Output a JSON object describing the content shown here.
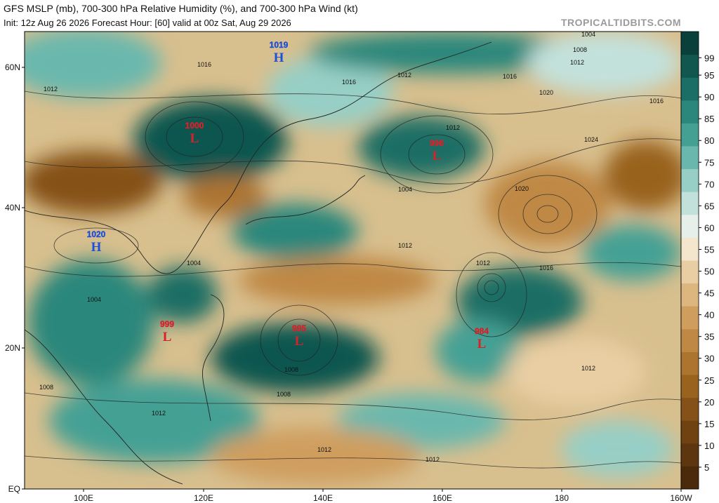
{
  "header": {
    "title": "GFS MSLP (mb), 700-300 hPa Relative Humidity (%), and 700-300 hPa Wind (kt)",
    "subtitle": "Init: 12z Aug 26 2026   Forecast Hour: [60]   valid at 00z Sat, Aug 29 2026",
    "watermark": "TROPICALTIDBITS.COM"
  },
  "map": {
    "lon_labels": [
      "100E",
      "120E",
      "140E",
      "160E",
      "180",
      "160W"
    ],
    "lat_labels": [
      "60N",
      "40N",
      "20N",
      "EQ"
    ],
    "centers": [
      {
        "kind": "H",
        "value": "1019"
      },
      {
        "kind": "L",
        "value": "1000"
      },
      {
        "kind": "L",
        "value": "996"
      },
      {
        "kind": "H",
        "value": "1020"
      },
      {
        "kind": "L",
        "value": "999"
      },
      {
        "kind": "L",
        "value": "995"
      },
      {
        "kind": "L",
        "value": "984"
      }
    ],
    "isobar_labels": [
      "1004",
      "1008",
      "1012",
      "1012",
      "1016",
      "1016",
      "1020",
      "1024",
      "1012",
      "1016",
      "1012",
      "1004",
      "1004",
      "1008",
      "1008",
      "1012",
      "1012",
      "1020",
      "1012",
      "1016",
      "1004",
      "1008",
      "1012",
      "1012",
      "1012",
      "1016"
    ]
  },
  "colorbar": {
    "ticks": [
      5,
      10,
      15,
      20,
      25,
      30,
      35,
      40,
      45,
      50,
      55,
      60,
      65,
      70,
      75,
      80,
      85,
      90,
      95,
      99
    ],
    "colors": [
      "#4a2a0b",
      "#5d350e",
      "#704212",
      "#855118",
      "#99621f",
      "#ad7430",
      "#bf8845",
      "#cf9e5f",
      "#ddb67f",
      "#e9cea3",
      "#f3e6cd",
      "#e6efe9",
      "#c3e1db",
      "#97cfc6",
      "#6ab8ad",
      "#45a094",
      "#2b877c",
      "#1b6e65",
      "#11564f",
      "#0a403b"
    ]
  }
}
